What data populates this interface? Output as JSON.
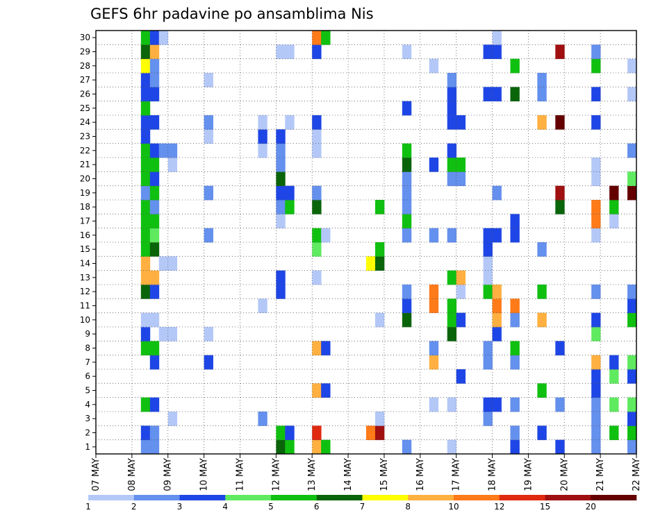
{
  "chart_data": {
    "type": "heatmap",
    "title": "GEFS 6hr padavine po ansamblima Nis",
    "xlabel": "",
    "ylabel": "",
    "x_ticks": [
      "07 MAY",
      "08 MAY",
      "09 MAY",
      "10 MAY",
      "11 MAY",
      "12 MAY",
      "13 MAY",
      "14 MAY",
      "15 MAY",
      "16 MAY",
      "17 MAY",
      "18 MAY",
      "19 MAY",
      "20 MAY",
      "21 MAY",
      "22 MAY"
    ],
    "y_ticks": [
      "1",
      "2",
      "3",
      "4",
      "5",
      "6",
      "7",
      "8",
      "9",
      "10",
      "11",
      "12",
      "13",
      "14",
      "15",
      "16",
      "17",
      "18",
      "19",
      "20",
      "21",
      "22",
      "23",
      "24",
      "25",
      "26",
      "27",
      "28",
      "29",
      "30"
    ],
    "x_steps_per_day": 4,
    "x_start": "07 MAY",
    "x_end": "22 MAY",
    "members": 30,
    "grid": true,
    "colorbar": {
      "ticks": [
        "1",
        "2",
        "3",
        "4",
        "5",
        "6",
        "7",
        "8",
        "10",
        "12",
        "15",
        "20"
      ],
      "colors": [
        "#b4c8f8",
        "#6490ee",
        "#1e46e6",
        "#60ea60",
        "#10c010",
        "#0a640a",
        "#ffff00",
        "#ffb040",
        "#ff7a18",
        "#e02a10",
        "#a01010",
        "#640000"
      ]
    },
    "cells": [
      {
        "day": "08 MAY",
        "hour": "06",
        "values": [
          2,
          3,
          null,
          5,
          null,
          null,
          null,
          5,
          3,
          1,
          null,
          6,
          8,
          8,
          5,
          5,
          5,
          5,
          2,
          5,
          5,
          5,
          3,
          3,
          5,
          3,
          3,
          7,
          6,
          5
        ]
      },
      {
        "day": "08 MAY",
        "hour": "12",
        "values": [
          2,
          2,
          null,
          3,
          null,
          null,
          3,
          5,
          null,
          1,
          null,
          3,
          8,
          null,
          6,
          4,
          5,
          2,
          5,
          3,
          5,
          3,
          null,
          3,
          null,
          3,
          2,
          2,
          8,
          3
        ]
      },
      {
        "day": "08 MAY",
        "hour": "18",
        "values": [
          null,
          null,
          null,
          null,
          null,
          null,
          null,
          null,
          1,
          null,
          null,
          null,
          null,
          1,
          null,
          null,
          null,
          null,
          null,
          null,
          null,
          2,
          null,
          null,
          null,
          null,
          null,
          null,
          null,
          1
        ]
      },
      {
        "day": "09 MAY",
        "hour": "00",
        "values": [
          null,
          null,
          1,
          null,
          null,
          null,
          null,
          null,
          1,
          null,
          null,
          null,
          null,
          1,
          null,
          null,
          null,
          null,
          null,
          null,
          1,
          2,
          null,
          null,
          null,
          null,
          null,
          null,
          null,
          null
        ]
      },
      {
        "day": "10 MAY",
        "hour": "00",
        "values": [
          null,
          null,
          null,
          null,
          null,
          null,
          3,
          null,
          1,
          null,
          null,
          null,
          null,
          null,
          null,
          2,
          null,
          null,
          2,
          null,
          null,
          null,
          1,
          2,
          null,
          null,
          1,
          null,
          null,
          null
        ]
      },
      {
        "day": "11 MAY",
        "hour": "12",
        "values": [
          null,
          null,
          2,
          null,
          null,
          null,
          null,
          null,
          null,
          null,
          1,
          null,
          null,
          null,
          null,
          null,
          null,
          null,
          null,
          null,
          null,
          1,
          3,
          1,
          null,
          null,
          null,
          null,
          null,
          null
        ]
      },
      {
        "day": "12 MAY",
        "hour": "00",
        "values": [
          6,
          5,
          null,
          null,
          null,
          null,
          null,
          null,
          null,
          null,
          null,
          3,
          3,
          null,
          null,
          null,
          1,
          2,
          3,
          6,
          2,
          2,
          3,
          null,
          null,
          null,
          null,
          null,
          1,
          null
        ]
      },
      {
        "day": "12 MAY",
        "hour": "06",
        "values": [
          5,
          3,
          null,
          null,
          null,
          null,
          null,
          null,
          null,
          null,
          null,
          null,
          null,
          null,
          null,
          null,
          null,
          5,
          3,
          null,
          null,
          null,
          null,
          1,
          null,
          null,
          null,
          null,
          1,
          null
        ]
      },
      {
        "day": "13 MAY",
        "hour": "00",
        "values": [
          9,
          13,
          null,
          null,
          8,
          null,
          null,
          9,
          null,
          null,
          null,
          null,
          1,
          null,
          4,
          5,
          null,
          6,
          2,
          null,
          null,
          1,
          1,
          3,
          null,
          null,
          null,
          null,
          3,
          10
        ]
      },
      {
        "day": "13 MAY",
        "hour": "06",
        "values": [
          5,
          null,
          null,
          null,
          3,
          null,
          null,
          3,
          null,
          null,
          null,
          null,
          null,
          null,
          null,
          1,
          null,
          null,
          null,
          null,
          null,
          null,
          null,
          null,
          null,
          null,
          null,
          null,
          null,
          5
        ]
      },
      {
        "day": "14 MAY",
        "hour": "12",
        "values": [
          null,
          10,
          null,
          null,
          null,
          null,
          null,
          null,
          null,
          null,
          null,
          null,
          null,
          7,
          null,
          null,
          null,
          null,
          null,
          null,
          null,
          null,
          null,
          null,
          null,
          null,
          null,
          null,
          null,
          null
        ]
      },
      {
        "day": "14 MAY",
        "hour": "18",
        "values": [
          null,
          15,
          1,
          null,
          null,
          null,
          null,
          null,
          null,
          1,
          null,
          null,
          null,
          6,
          5,
          null,
          null,
          5,
          null,
          null,
          null,
          null,
          null,
          null,
          null,
          null,
          null,
          null,
          null,
          null
        ]
      },
      {
        "day": "15 MAY",
        "hour": "12",
        "values": [
          2,
          null,
          null,
          null,
          null,
          null,
          null,
          null,
          null,
          6,
          3,
          2,
          null,
          null,
          null,
          2,
          5,
          2,
          2,
          2,
          6,
          5,
          null,
          null,
          3,
          null,
          null,
          null,
          1,
          null
        ]
      },
      {
        "day": "16 MAY",
        "hour": "06",
        "values": [
          null,
          null,
          null,
          1,
          null,
          null,
          9,
          2,
          null,
          null,
          10,
          10,
          null,
          null,
          null,
          2,
          null,
          null,
          null,
          null,
          3,
          null,
          null,
          null,
          null,
          null,
          null,
          1,
          null,
          null
        ]
      },
      {
        "day": "16 MAY",
        "hour": "18",
        "values": [
          1,
          null,
          null,
          1,
          null,
          null,
          null,
          null,
          6,
          5,
          5,
          null,
          5,
          null,
          null,
          2,
          null,
          null,
          null,
          2,
          5,
          3,
          null,
          3,
          3,
          3,
          2,
          null,
          null,
          null
        ]
      },
      {
        "day": "17 MAY",
        "hour": "00",
        "values": [
          null,
          null,
          null,
          null,
          null,
          3,
          null,
          null,
          null,
          3,
          null,
          1,
          9,
          null,
          null,
          null,
          null,
          null,
          null,
          2,
          5,
          null,
          null,
          3,
          null,
          null,
          null,
          null,
          null,
          null
        ]
      },
      {
        "day": "17 MAY",
        "hour": "18",
        "values": [
          null,
          null,
          2,
          3,
          null,
          null,
          2,
          2,
          null,
          null,
          null,
          5,
          1,
          1,
          3,
          3,
          null,
          null,
          null,
          null,
          null,
          null,
          null,
          null,
          null,
          3,
          null,
          null,
          3,
          null
        ]
      },
      {
        "day": "18 MAY",
        "hour": "00",
        "values": [
          null,
          null,
          null,
          3,
          null,
          null,
          null,
          null,
          3,
          8,
          10,
          8,
          null,
          null,
          null,
          3,
          null,
          null,
          2,
          null,
          null,
          null,
          null,
          null,
          null,
          3,
          null,
          null,
          3,
          1
        ]
      },
      {
        "day": "18 MAY",
        "hour": "12",
        "values": [
          3,
          2,
          null,
          2,
          null,
          null,
          2,
          5,
          null,
          2,
          10,
          null,
          null,
          null,
          null,
          3,
          3,
          null,
          null,
          null,
          null,
          null,
          null,
          null,
          null,
          6,
          null,
          5,
          null,
          null
        ]
      },
      {
        "day": "19 MAY",
        "hour": "06",
        "values": [
          null,
          3,
          null,
          null,
          5,
          null,
          null,
          null,
          null,
          8,
          null,
          5,
          null,
          null,
          2,
          null,
          null,
          null,
          null,
          null,
          null,
          null,
          null,
          9,
          null,
          2,
          2,
          null,
          null,
          null
        ]
      },
      {
        "day": "19 MAY",
        "hour": "18",
        "values": [
          3,
          null,
          null,
          2,
          null,
          null,
          null,
          3,
          null,
          null,
          null,
          null,
          null,
          null,
          null,
          null,
          null,
          6,
          15,
          null,
          null,
          null,
          null,
          20,
          null,
          null,
          null,
          null,
          15,
          null
        ]
      },
      {
        "day": "20 MAY",
        "hour": "18",
        "values": [
          2,
          2,
          2,
          2,
          3,
          3,
          9,
          null,
          4,
          3,
          null,
          2,
          null,
          null,
          null,
          1,
          10,
          10,
          null,
          1,
          1,
          null,
          null,
          3,
          null,
          3,
          null,
          5,
          2,
          null
        ]
      },
      {
        "day": "21 MAY",
        "hour": "06",
        "values": [
          null,
          5,
          null,
          4,
          null,
          4,
          3,
          null,
          null,
          null,
          null,
          null,
          null,
          null,
          null,
          null,
          1,
          5,
          20,
          null,
          null,
          null,
          null,
          null,
          null,
          null,
          null,
          null,
          null,
          null
        ]
      },
      {
        "day": "21 MAY",
        "hour": "18",
        "values": [
          2,
          5,
          3,
          4,
          null,
          3,
          4,
          null,
          null,
          5,
          3,
          2,
          null,
          null,
          null,
          null,
          null,
          null,
          20,
          4,
          null,
          2,
          null,
          null,
          null,
          1,
          null,
          1,
          null,
          null
        ]
      }
    ]
  }
}
